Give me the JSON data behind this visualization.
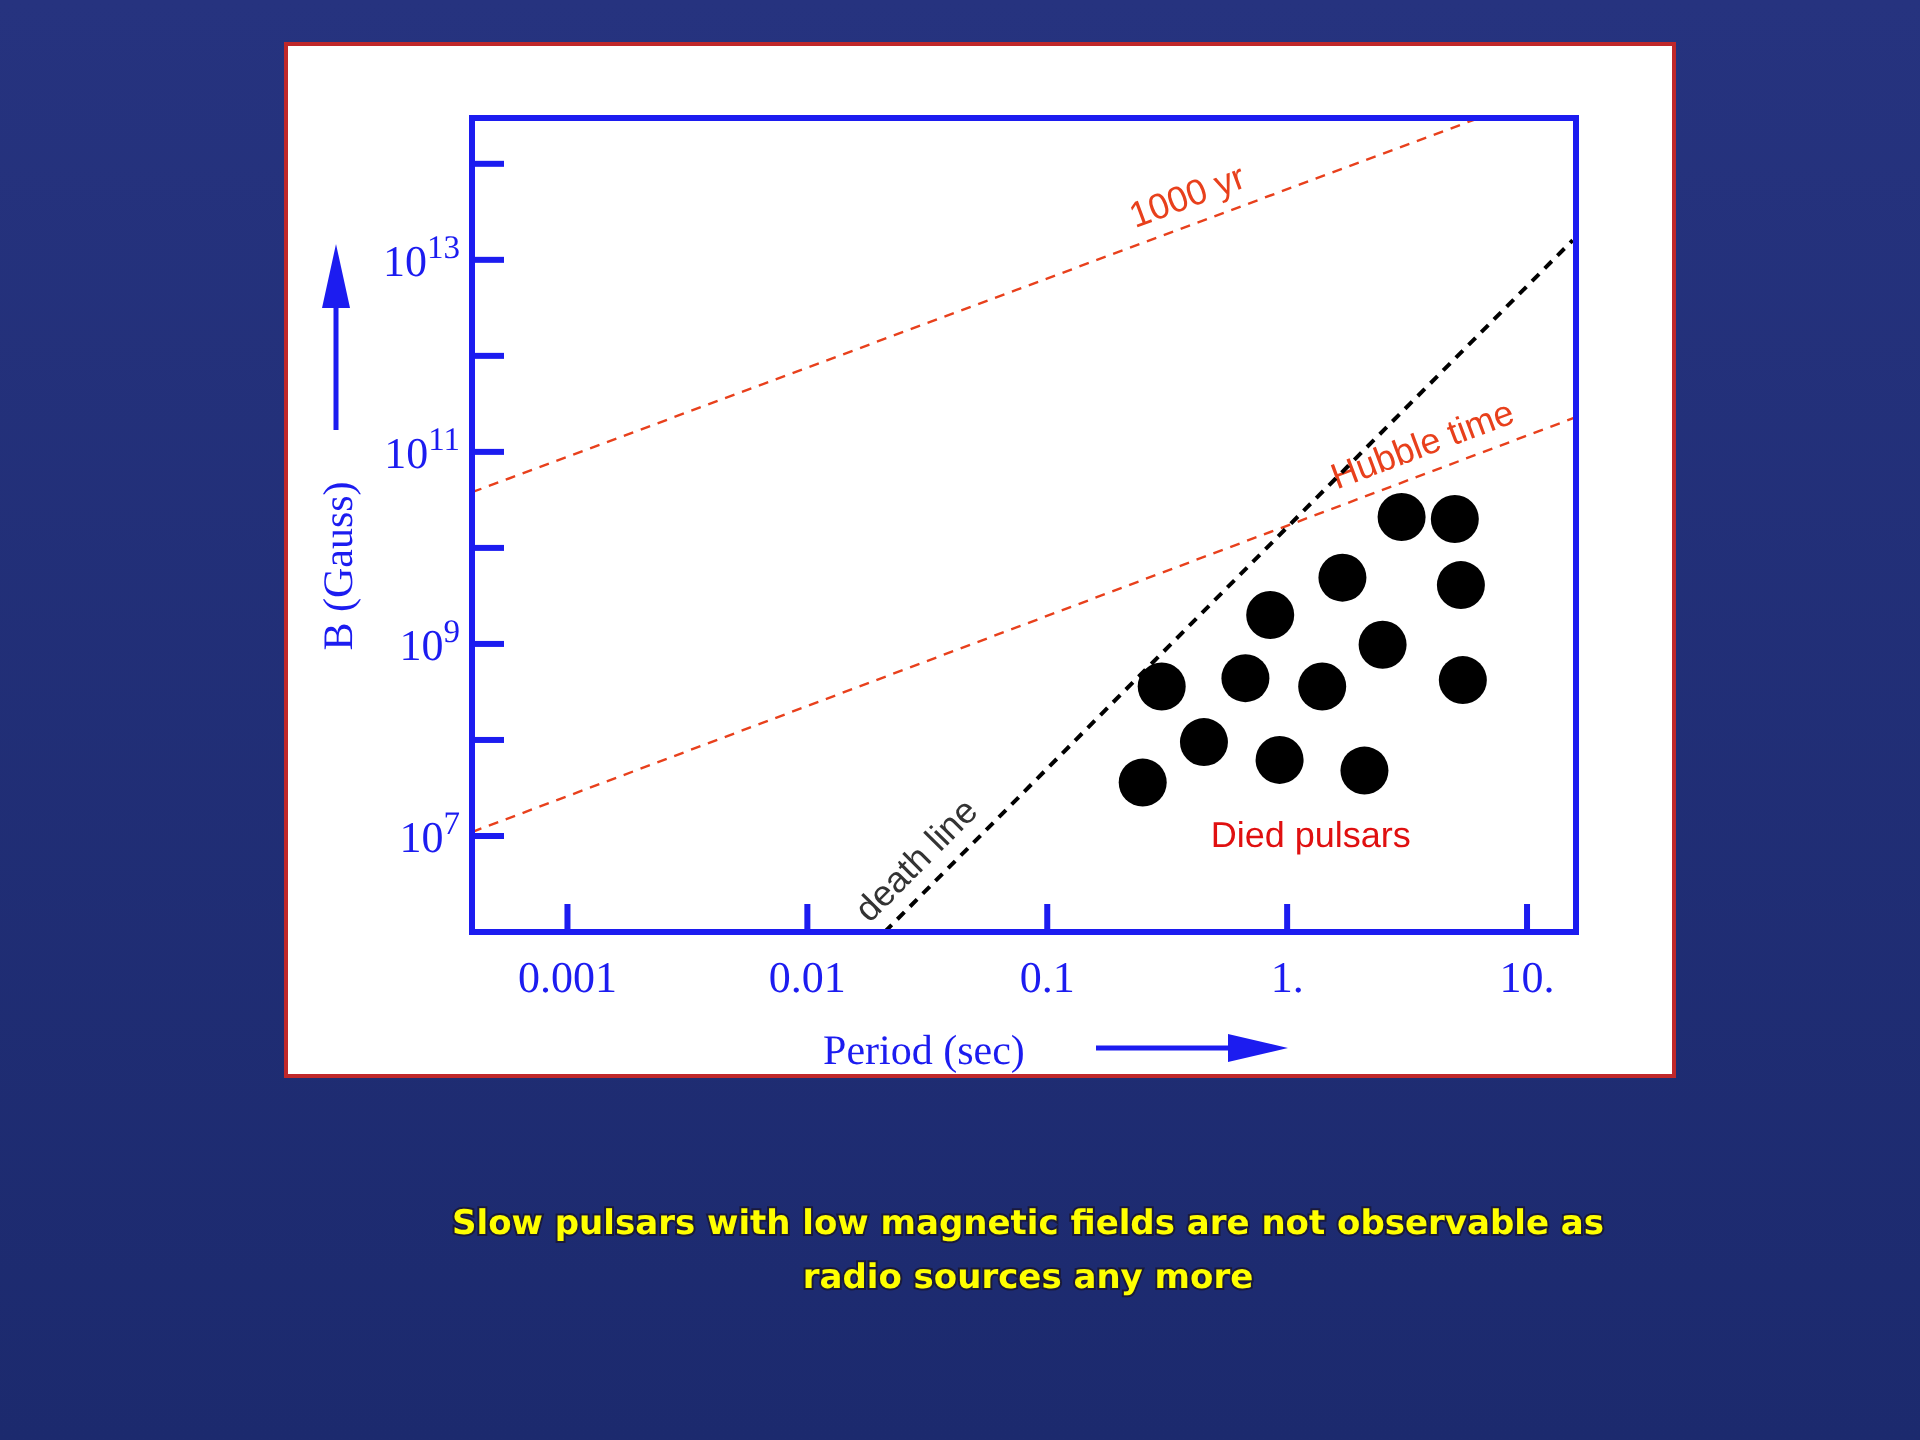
{
  "chart_data": {
    "type": "scatter",
    "xlabel": "Period  (sec)",
    "ylabel": "B (Gauss)",
    "log": "xy",
    "xlim": [
      0.0004,
      16
    ],
    "ylim": [
      1000000,
      300000000000000
    ],
    "xticks": [
      0.001,
      0.01,
      0.1,
      {
        "value": 1,
        "label": "1."
      },
      {
        "value": 10,
        "label": "10."
      }
    ],
    "yticks": [
      {
        "value": 10000000,
        "label": "10$^{7}$"
      },
      {
        "value": 100000000,
        "label": null
      },
      {
        "value": 1000000000,
        "label": "10$^{9}$"
      },
      {
        "value": 10000000000,
        "label": null
      },
      {
        "value": 100000000000,
        "label": "10$^{11}$"
      },
      {
        "value": 1000000000000,
        "label": null
      },
      {
        "value": 10000000000000,
        "label": "10$^{13}$"
      },
      {
        "value": 100000000000000,
        "label": null
      }
    ],
    "grid": false,
    "marker": "circle",
    "series": [
      {
        "name": "1000 yr",
        "type": "line",
        "marker": "none",
        "color": "#e8401c",
        "line_style": "dashed",
        "x": [
          0.0004,
          6.3
        ],
        "values": [
          38000000000,
          300000000000000
        ]
      },
      {
        "name": "Hubble time",
        "type": "line",
        "marker": "none",
        "color": "#e8401c",
        "line_style": "dashed",
        "x": [
          0.0004,
          16
        ],
        "values": [
          11000000,
          230000000000
        ]
      },
      {
        "name": "death line",
        "type": "line",
        "marker": "none",
        "color": "#000000",
        "line_style": "dashed",
        "x": [
          0.021,
          15.5
        ],
        "values": [
          1000000,
          16000000000000
        ]
      },
      {
        "name": "Died pulsars",
        "color": "#000000",
        "x": [
          0.25,
          0.3,
          0.45,
          0.67,
          0.85,
          0.93,
          1.4,
          1.7,
          2.1,
          2.5,
          3.0,
          5.0,
          5.3,
          5.4
        ],
        "values": [
          36000000,
          360000000,
          95000000,
          440000000,
          2000000000,
          62000000,
          360000000,
          4900000000,
          48000000,
          980000000,
          21000000000,
          20000000000,
          4100000000,
          420000000
        ]
      }
    ],
    "annotations": [
      "Slow pulsars with low magnetic fields are not observable as radio sources any more"
    ]
  }
}
